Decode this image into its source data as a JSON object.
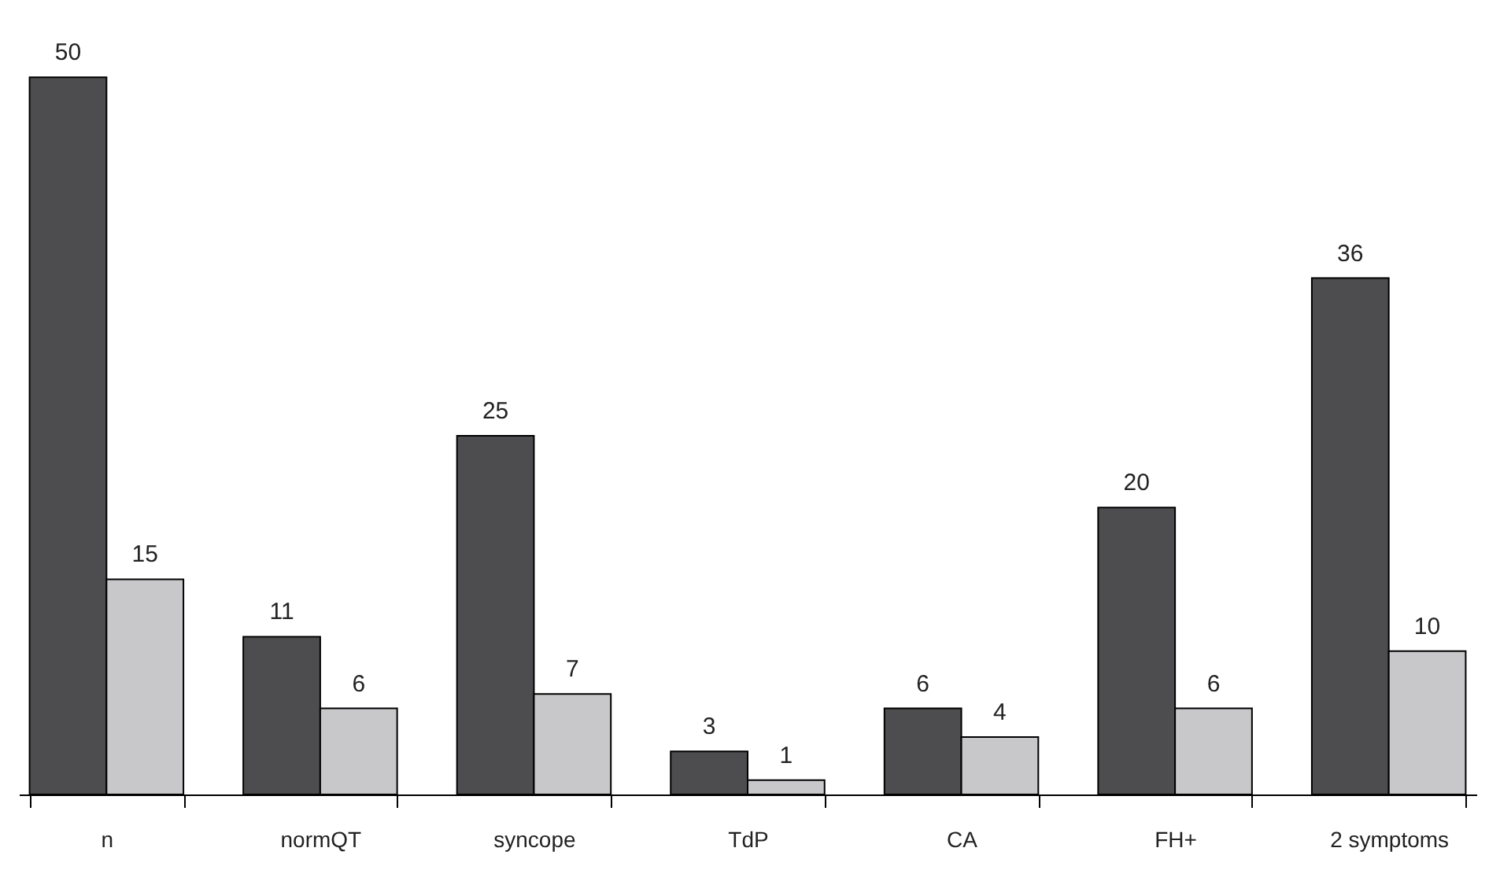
{
  "chart_data": {
    "type": "bar",
    "categories": [
      "n",
      "normQT",
      "syncope",
      "TdP",
      "CA",
      "FH+",
      "2 symptoms"
    ],
    "series": [
      {
        "color": "#4d4d4f",
        "values": [
          50,
          11,
          25,
          3,
          6,
          20,
          36
        ]
      },
      {
        "color": "#c8c8ca",
        "values": [
          15,
          6,
          7,
          1,
          4,
          6,
          10
        ]
      }
    ],
    "data_labels": true,
    "grid": false,
    "legend": false
  }
}
